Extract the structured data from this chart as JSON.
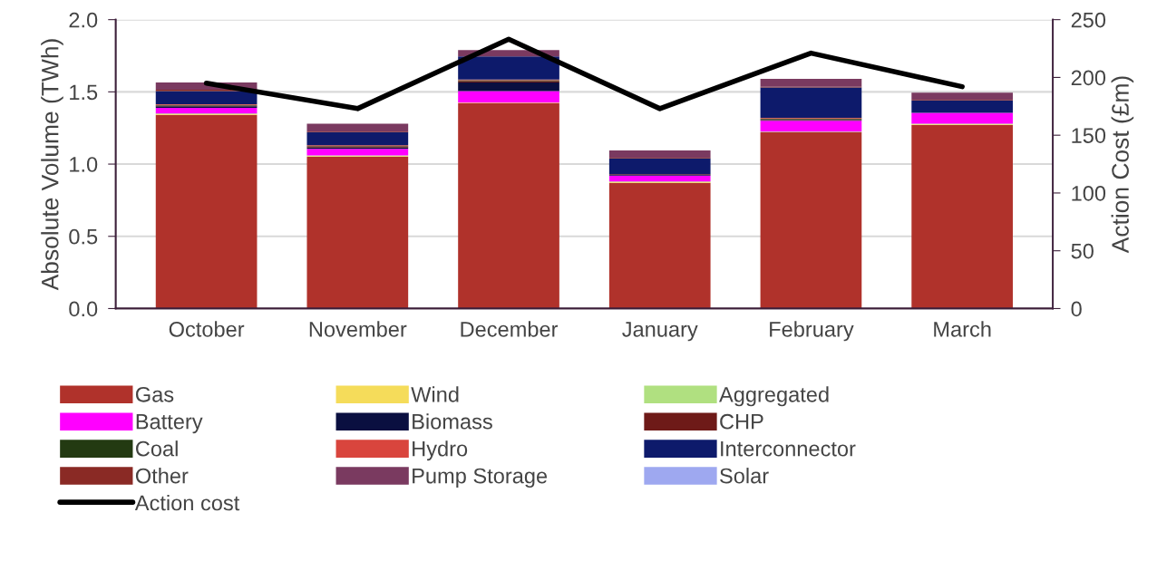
{
  "chart_data": {
    "type": "bar",
    "stacked": true,
    "categories": [
      "October",
      "November",
      "December",
      "January",
      "February",
      "March"
    ],
    "ylabel": "Absolute Volume (TWh)",
    "y2label": "Action Cost (£m)",
    "ylim": [
      0,
      2.0
    ],
    "yticks": [
      {
        "value": 0,
        "label": "0.0"
      },
      {
        "value": 0.5,
        "label": "0.5"
      },
      {
        "value": 1.0,
        "label": "1.0"
      },
      {
        "value": 1.5,
        "label": "1.5"
      },
      {
        "value": 2.0,
        "label": "2.0"
      }
    ],
    "y2lim": [
      0,
      250
    ],
    "y2ticks": [
      0,
      50,
      100,
      150,
      200,
      250
    ],
    "grid": "y",
    "legend": "bottom",
    "series": [
      {
        "name": "Gas",
        "color": "#b0322b",
        "values": [
          1.34,
          1.05,
          1.42,
          0.87,
          1.22,
          1.27
        ]
      },
      {
        "name": "Wind",
        "color": "#f5dc5a",
        "values": [
          0.005,
          0.005,
          0.005,
          0.005,
          0.0,
          0.005
        ]
      },
      {
        "name": "Aggregated",
        "color": "#b0e080",
        "values": [
          0.005,
          0.005,
          0.0,
          0.005,
          0.005,
          0.005
        ]
      },
      {
        "name": "Battery",
        "color": "#ff00ff",
        "values": [
          0.04,
          0.045,
          0.08,
          0.04,
          0.075,
          0.075
        ]
      },
      {
        "name": "Biomass",
        "color": "#0a0f40",
        "values": [
          0.01,
          0.01,
          0.06,
          0.005,
          0.005,
          null
        ]
      },
      {
        "name": "CHP",
        "color": "#6e1a18",
        "values": [
          0.005,
          0.005,
          0.01,
          0.005,
          0.005,
          0.0
        ]
      },
      {
        "name": "Coal",
        "color": "#233a12",
        "values": [
          0.005,
          0.005,
          0.005,
          0.0,
          0.005,
          0.0
        ]
      },
      {
        "name": "Hydro",
        "color": "#d9453d",
        "values": [
          0.005,
          0.005,
          0.005,
          0.0,
          0.005,
          0.0
        ]
      },
      {
        "name": "Interconnector",
        "color": "#0d1a6b",
        "values": [
          0.09,
          0.09,
          0.16,
          0.11,
          0.21,
          0.085
        ]
      },
      {
        "name": "Other",
        "color": "#8a2a25",
        "values": [
          0.01,
          0.005,
          null,
          0.005,
          0.005,
          0.005
        ]
      },
      {
        "name": "Pump Storage",
        "color": "#7a3a60",
        "values": [
          0.05,
          0.055,
          0.045,
          0.05,
          0.055,
          0.05
        ]
      },
      {
        "name": "Solar",
        "color": "#9ea8f0",
        "values": [
          0.0,
          0.0,
          0.0,
          0.0,
          0.0,
          0.0
        ]
      },
      {
        "name": "Action cost",
        "type": "line",
        "axis": "y2",
        "color": "#000000",
        "values": [
          195,
          173,
          233,
          173,
          221,
          192
        ]
      }
    ]
  }
}
